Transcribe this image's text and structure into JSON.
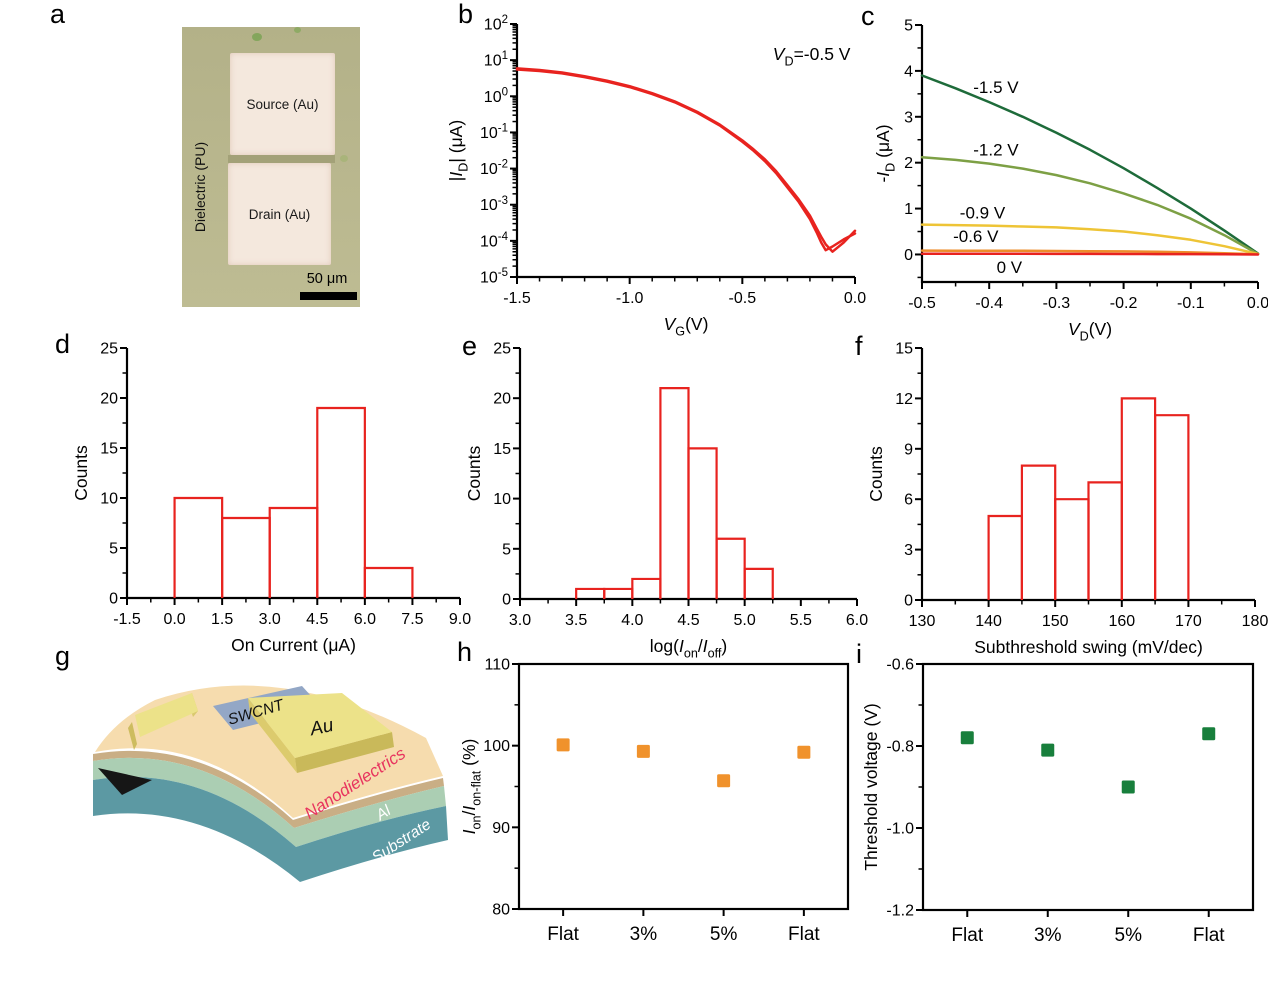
{
  "figure": {
    "background": "#ffffff",
    "panels": {
      "a": {
        "letter": "a",
        "micrograph": {
          "dielectric_label": "Dielectric (PU)",
          "source_label": "Source (Au)",
          "drain_label": "Drain (Au)",
          "scale_bar_label": "50 μm",
          "colors": {
            "background": "#b5b38a",
            "pads": "#f4e8dd",
            "gap": "#a3a178",
            "scale_bar": "#000000"
          }
        }
      },
      "b": {
        "letter": "b"
      },
      "c": {
        "letter": "c"
      },
      "d": {
        "letter": "d"
      },
      "e": {
        "letter": "e"
      },
      "f": {
        "letter": "f"
      },
      "g": {
        "letter": "g",
        "schematic": {
          "labels": {
            "swcnt": "SWCNT",
            "au": "Au",
            "nanodielectrics": "Nanodielectrics",
            "al": "Al",
            "substrate": "Substrate"
          },
          "colors": {
            "substrate": "#5c99a3",
            "al": "#abceb3",
            "interlayer": "#c9ae85",
            "nanodielectrics": "#f6dcae",
            "swcnt": "#93a7c6",
            "gold_top": "#ece289",
            "gold_side": "#cdbc5f",
            "nanodielectrics_label": "#e8355f"
          }
        }
      },
      "h": {
        "letter": "h"
      },
      "i": {
        "letter": "i"
      }
    }
  },
  "chart_data": [
    {
      "panel": "b",
      "type": "line",
      "frame": "axes",
      "x_axis": {
        "lim": [
          -1.5,
          0
        ],
        "ticks": [
          -1.5,
          -1.0,
          -0.5,
          0.0
        ],
        "tick_labels": [
          "-1.5",
          "-1.0",
          "-0.5",
          "0.0"
        ],
        "minor_step": 0.1,
        "label_parts": [
          {
            "t": "V",
            "i": true
          },
          {
            "t": "G",
            "v": "sub"
          },
          {
            "t": "(V)"
          }
        ]
      },
      "y_axis": {
        "log": true,
        "exp_lim": [
          -5,
          2
        ],
        "exp_ticks": [
          -5,
          -4,
          -3,
          -2,
          -1,
          0,
          1,
          2
        ],
        "label_parts": [
          {
            "t": "|"
          },
          {
            "t": "I",
            "i": true
          },
          {
            "t": "D",
            "v": "sub"
          },
          {
            "t": "| (μA)"
          }
        ]
      },
      "annotation": {
        "parts": [
          {
            "t": "V",
            "i": true
          },
          {
            "t": "D",
            "v": "sub"
          },
          {
            "t": "=-0.5 V"
          }
        ],
        "x": -0.02,
        "y_exp": 1.0,
        "anchor": "end"
      },
      "series": [
        {
          "name": "transfer-sweep-1",
          "color": "#e8231f",
          "x": [
            -1.5,
            -1.4,
            -1.3,
            -1.2,
            -1.1,
            -1.0,
            -0.9,
            -0.8,
            -0.7,
            -0.6,
            -0.5,
            -0.45,
            -0.4,
            -0.35,
            -0.3,
            -0.25,
            -0.2,
            -0.17,
            -0.15,
            -0.13,
            -0.1,
            -0.05,
            0
          ],
          "y": [
            5.5,
            5.0,
            4.3,
            3.4,
            2.55,
            1.8,
            1.15,
            0.68,
            0.35,
            0.155,
            0.055,
            0.031,
            0.016,
            0.0075,
            0.003,
            0.0012,
            0.0004,
            0.00017,
            9e-05,
            5.5e-05,
            7e-05,
            0.00011,
            0.00016
          ]
        },
        {
          "name": "transfer-sweep-2",
          "color": "#e8231f",
          "x": [
            -1.5,
            -1.4,
            -1.3,
            -1.2,
            -1.1,
            -1.0,
            -0.9,
            -0.8,
            -0.7,
            -0.6,
            -0.5,
            -0.45,
            -0.4,
            -0.35,
            -0.3,
            -0.25,
            -0.2,
            -0.17,
            -0.15,
            -0.13,
            -0.1,
            -0.05,
            0
          ],
          "y": [
            5.9,
            5.35,
            4.55,
            3.6,
            2.7,
            1.9,
            1.22,
            0.72,
            0.37,
            0.165,
            0.06,
            0.034,
            0.018,
            0.0085,
            0.0035,
            0.0014,
            0.0005,
            0.00022,
            0.00013,
            8e-05,
            5e-05,
            9e-05,
            0.00019
          ]
        }
      ]
    },
    {
      "panel": "c",
      "type": "line",
      "frame": "axes",
      "x": [
        -0.5,
        -0.45,
        -0.4,
        -0.35,
        -0.3,
        -0.25,
        -0.2,
        -0.15,
        -0.1,
        -0.05,
        0
      ],
      "x_axis": {
        "lim": [
          -0.5,
          0
        ],
        "ticks": [
          -0.5,
          -0.4,
          -0.3,
          -0.2,
          -0.1,
          0.0
        ],
        "tick_labels": [
          "-0.5",
          "-0.4",
          "-0.3",
          "-0.2",
          "-0.1",
          "0.0"
        ],
        "minor_step": 0.05,
        "label_parts": [
          {
            "t": "V",
            "i": true
          },
          {
            "t": "D",
            "v": "sub"
          },
          {
            "t": "(V)"
          }
        ]
      },
      "y_axis": {
        "lim": [
          -0.6,
          5
        ],
        "ticks": [
          0,
          1,
          2,
          3,
          4,
          5
        ],
        "tick_labels": [
          "0",
          "1",
          "2",
          "3",
          "4",
          "5"
        ],
        "minor_step": 0.5,
        "label_parts": [
          {
            "t": "-"
          },
          {
            "t": "I",
            "i": true
          },
          {
            "t": "D",
            "v": "sub"
          },
          {
            "t": " (μA)"
          }
        ]
      },
      "series": [
        {
          "name": "VG -1.5 V",
          "label": "-1.5 V",
          "color": "#1e6b3a",
          "label_at": [
            -0.39,
            3.52
          ],
          "y": [
            3.9,
            3.62,
            3.32,
            3.0,
            2.65,
            2.28,
            1.88,
            1.45,
            1.0,
            0.52,
            0.02
          ]
        },
        {
          "name": "VG -1.2 V",
          "label": "-1.2 V",
          "color": "#7da045",
          "label_at": [
            -0.39,
            2.16
          ],
          "y": [
            2.12,
            2.06,
            1.98,
            1.87,
            1.73,
            1.55,
            1.33,
            1.08,
            0.78,
            0.42,
            0.01
          ]
        },
        {
          "name": "VG -0.9 V",
          "label": "-0.9 V",
          "color": "#eec436",
          "label_at": [
            -0.41,
            0.78
          ],
          "y": [
            0.65,
            0.64,
            0.63,
            0.61,
            0.59,
            0.55,
            0.5,
            0.42,
            0.32,
            0.18,
            0.01
          ]
        },
        {
          "name": "VG -0.6 V",
          "label": "-0.6 V",
          "color": "#ee8c2a",
          "label_at": [
            -0.42,
            0.27
          ],
          "y": [
            0.085,
            0.083,
            0.081,
            0.079,
            0.076,
            0.072,
            0.066,
            0.058,
            0.045,
            0.026,
            0.003
          ]
        },
        {
          "name": "VG 0 V",
          "label": "0 V",
          "color": "#e8231f",
          "label_at": [
            -0.37,
            -0.4
          ],
          "y": [
            0.015,
            0.015,
            0.014,
            0.014,
            0.013,
            0.012,
            0.011,
            0.009,
            0.007,
            0.004,
            0.0
          ]
        }
      ]
    },
    {
      "panel": "d",
      "type": "histogram",
      "frame": "axes",
      "x_axis": {
        "lim": [
          -1.5,
          9
        ],
        "ticks": [
          -1.5,
          0,
          1.5,
          3,
          4.5,
          6,
          7.5,
          9
        ],
        "tick_labels": [
          "-1.5",
          "0.0",
          "1.5",
          "3.0",
          "4.5",
          "6.0",
          "7.5",
          "9.0"
        ],
        "minor_step": 0.75,
        "label_parts": [
          {
            "t": "On Current (μA)"
          }
        ]
      },
      "y_axis": {
        "lim": [
          0,
          25
        ],
        "ticks": [
          0,
          5,
          10,
          15,
          20,
          25
        ],
        "tick_labels": [
          "0",
          "5",
          "10",
          "15",
          "20",
          "25"
        ],
        "minor_step": 2.5,
        "label_parts": [
          {
            "t": "Counts"
          }
        ]
      },
      "bins": {
        "start": 0,
        "width": 1.5,
        "counts": [
          10,
          8,
          9,
          19,
          3
        ],
        "color": "#e8231f"
      }
    },
    {
      "panel": "e",
      "type": "histogram",
      "frame": "axes",
      "x_axis": {
        "lim": [
          3,
          6
        ],
        "ticks": [
          3.0,
          3.5,
          4.0,
          4.5,
          5.0,
          5.5,
          6.0
        ],
        "tick_labels": [
          "3.0",
          "3.5",
          "4.0",
          "4.5",
          "5.0",
          "5.5",
          "6.0"
        ],
        "minor_step": 0.25,
        "label_parts": [
          {
            "t": "log("
          },
          {
            "t": "I",
            "i": true
          },
          {
            "t": "on",
            "v": "sub"
          },
          {
            "t": "/"
          },
          {
            "t": "I",
            "i": true
          },
          {
            "t": "off",
            "v": "sub"
          },
          {
            "t": ")"
          }
        ]
      },
      "y_axis": {
        "lim": [
          0,
          25
        ],
        "ticks": [
          0,
          5,
          10,
          15,
          20,
          25
        ],
        "tick_labels": [
          "0",
          "5",
          "10",
          "15",
          "20",
          "25"
        ],
        "minor_step": 2.5,
        "label_parts": [
          {
            "t": "Counts"
          }
        ]
      },
      "bins": {
        "start": 3.5,
        "width": 0.25,
        "counts": [
          1,
          1,
          2,
          21,
          15,
          6,
          3
        ],
        "color": "#e8231f"
      }
    },
    {
      "panel": "f",
      "type": "histogram",
      "frame": "axes",
      "x_axis": {
        "lim": [
          130,
          180
        ],
        "ticks": [
          130,
          140,
          150,
          160,
          170,
          180
        ],
        "tick_labels": [
          "130",
          "140",
          "150",
          "160",
          "170",
          "180"
        ],
        "minor_step": 5,
        "label_parts": [
          {
            "t": "Subthreshold swing (mV/dec)"
          }
        ]
      },
      "y_axis": {
        "lim": [
          0,
          15
        ],
        "ticks": [
          0,
          3,
          6,
          9,
          12,
          15
        ],
        "tick_labels": [
          "0",
          "3",
          "6",
          "9",
          "12",
          "15"
        ],
        "minor_step": 1.5,
        "label_parts": [
          {
            "t": "Counts"
          }
        ]
      },
      "bins": {
        "start": 140,
        "width": 5,
        "counts": [
          5,
          8,
          6,
          7,
          12,
          11
        ],
        "color": "#e8231f"
      }
    },
    {
      "panel": "h",
      "type": "scatter",
      "frame": "box",
      "x_axis": {
        "categories": [
          "Flat",
          "3%",
          "5%",
          "Flat"
        ]
      },
      "y_axis": {
        "lim": [
          80,
          110
        ],
        "ticks": [
          80,
          90,
          100,
          110
        ],
        "tick_labels": [
          "80",
          "90",
          "100",
          "110"
        ],
        "minor_step": 5,
        "label_parts": [
          {
            "t": "I",
            "i": true
          },
          {
            "t": "on",
            "v": "sub"
          },
          {
            "t": "/"
          },
          {
            "t": "I",
            "i": true
          },
          {
            "t": "on-flat",
            "v": "sub"
          },
          {
            "t": " (%)"
          }
        ]
      },
      "points": {
        "values": [
          100.1,
          99.3,
          95.7,
          99.2
        ],
        "color": "#f0922c",
        "marker": "square",
        "size": 13
      }
    },
    {
      "panel": "i",
      "type": "scatter",
      "frame": "box",
      "x_axis": {
        "categories": [
          "Flat",
          "3%",
          "5%",
          "Flat"
        ]
      },
      "y_axis": {
        "lim": [
          -1.2,
          -0.6
        ],
        "ticks": [
          -0.6,
          -0.8,
          -1.0,
          -1.2
        ],
        "tick_labels": [
          "-0.6",
          "-0.8",
          "-1.0",
          "-1.2"
        ],
        "minor_step": 0.1,
        "label_parts": [
          {
            "t": "Threshold voltage (V)"
          }
        ]
      },
      "points": {
        "values": [
          -0.78,
          -0.81,
          -0.9,
          -0.77
        ],
        "color": "#187f3c",
        "marker": "square",
        "size": 13
      }
    }
  ]
}
